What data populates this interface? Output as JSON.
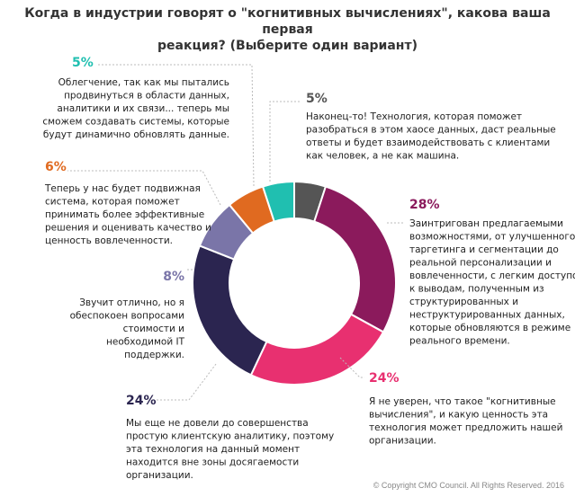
{
  "title_lines": [
    "Когда в индустрии говорят о \"когнитивных вычислениях\", какова ваша первая",
    "реакция? (Выберите один вариант)"
  ],
  "copyright": "© Copyright CMO Council. All Rights Reserved. 2016",
  "chart_data": {
    "type": "pie",
    "donut": true,
    "title": "Когда в индустрии говорят о \"когнитивных вычислениях\", какова ваша первая реакция? (Выберите один вариант)",
    "slices": [
      {
        "label": "5%",
        "value": 5,
        "color": "#555555",
        "text": [
          "Наконец-то! Технология, которая поможет",
          "разобраться в этом хаосе данных, даст реальные",
          "ответы и будет взаимодействовать с клиентами",
          "как человек, а не как машина."
        ]
      },
      {
        "label": "28%",
        "value": 28,
        "color": "#8b1a5c",
        "text": [
          "Заинтригован предлагаемыми",
          "возможностями, от улучшенного",
          "таргетинга и сегментации до",
          "реальной персонализации и",
          "вовлеченности, с легким доступом",
          "к выводам, полученным из",
          "структурированных и",
          "неструктурированных данных,",
          "которые обновляются в режиме",
          "реального времени."
        ]
      },
      {
        "label": "24%",
        "value": 24,
        "color": "#e83070",
        "text": [
          "Я не уверен, что такое \"когнитивные",
          "вычисления\", и какую ценность эта",
          "технология может предложить нашей",
          "организации."
        ]
      },
      {
        "label": "24%",
        "value": 24,
        "color": "#2b2550",
        "text": [
          "Мы еще не довели до совершенства",
          "простую клиентскую аналитику, поэтому",
          "эта технология на данный момент",
          "находится вне зоны досягаемости",
          "организации."
        ]
      },
      {
        "label": "8%",
        "value": 8,
        "color": "#7a75a8",
        "text": [
          "Звучит отлично, но я",
          "обеспокоен вопросами",
          "стоимости и",
          "необходимой IT",
          "поддержки."
        ]
      },
      {
        "label": "6%",
        "value": 6,
        "color": "#e06a20",
        "text": [
          "Теперь у нас будет подвижная",
          "система, которая поможет",
          "принимать более эффективные",
          "решения и оценивать качество и",
          "ценность вовлеченности."
        ]
      },
      {
        "label": "5%",
        "value": 5,
        "color": "#20bfb0",
        "text": [
          "Облегчение, так как мы пытались",
          "продвинуться в области данных,",
          "аналитики и их связи... теперь мы",
          "сможем создавать системы, которые",
          "будут динамично обновлять данные."
        ]
      }
    ]
  }
}
